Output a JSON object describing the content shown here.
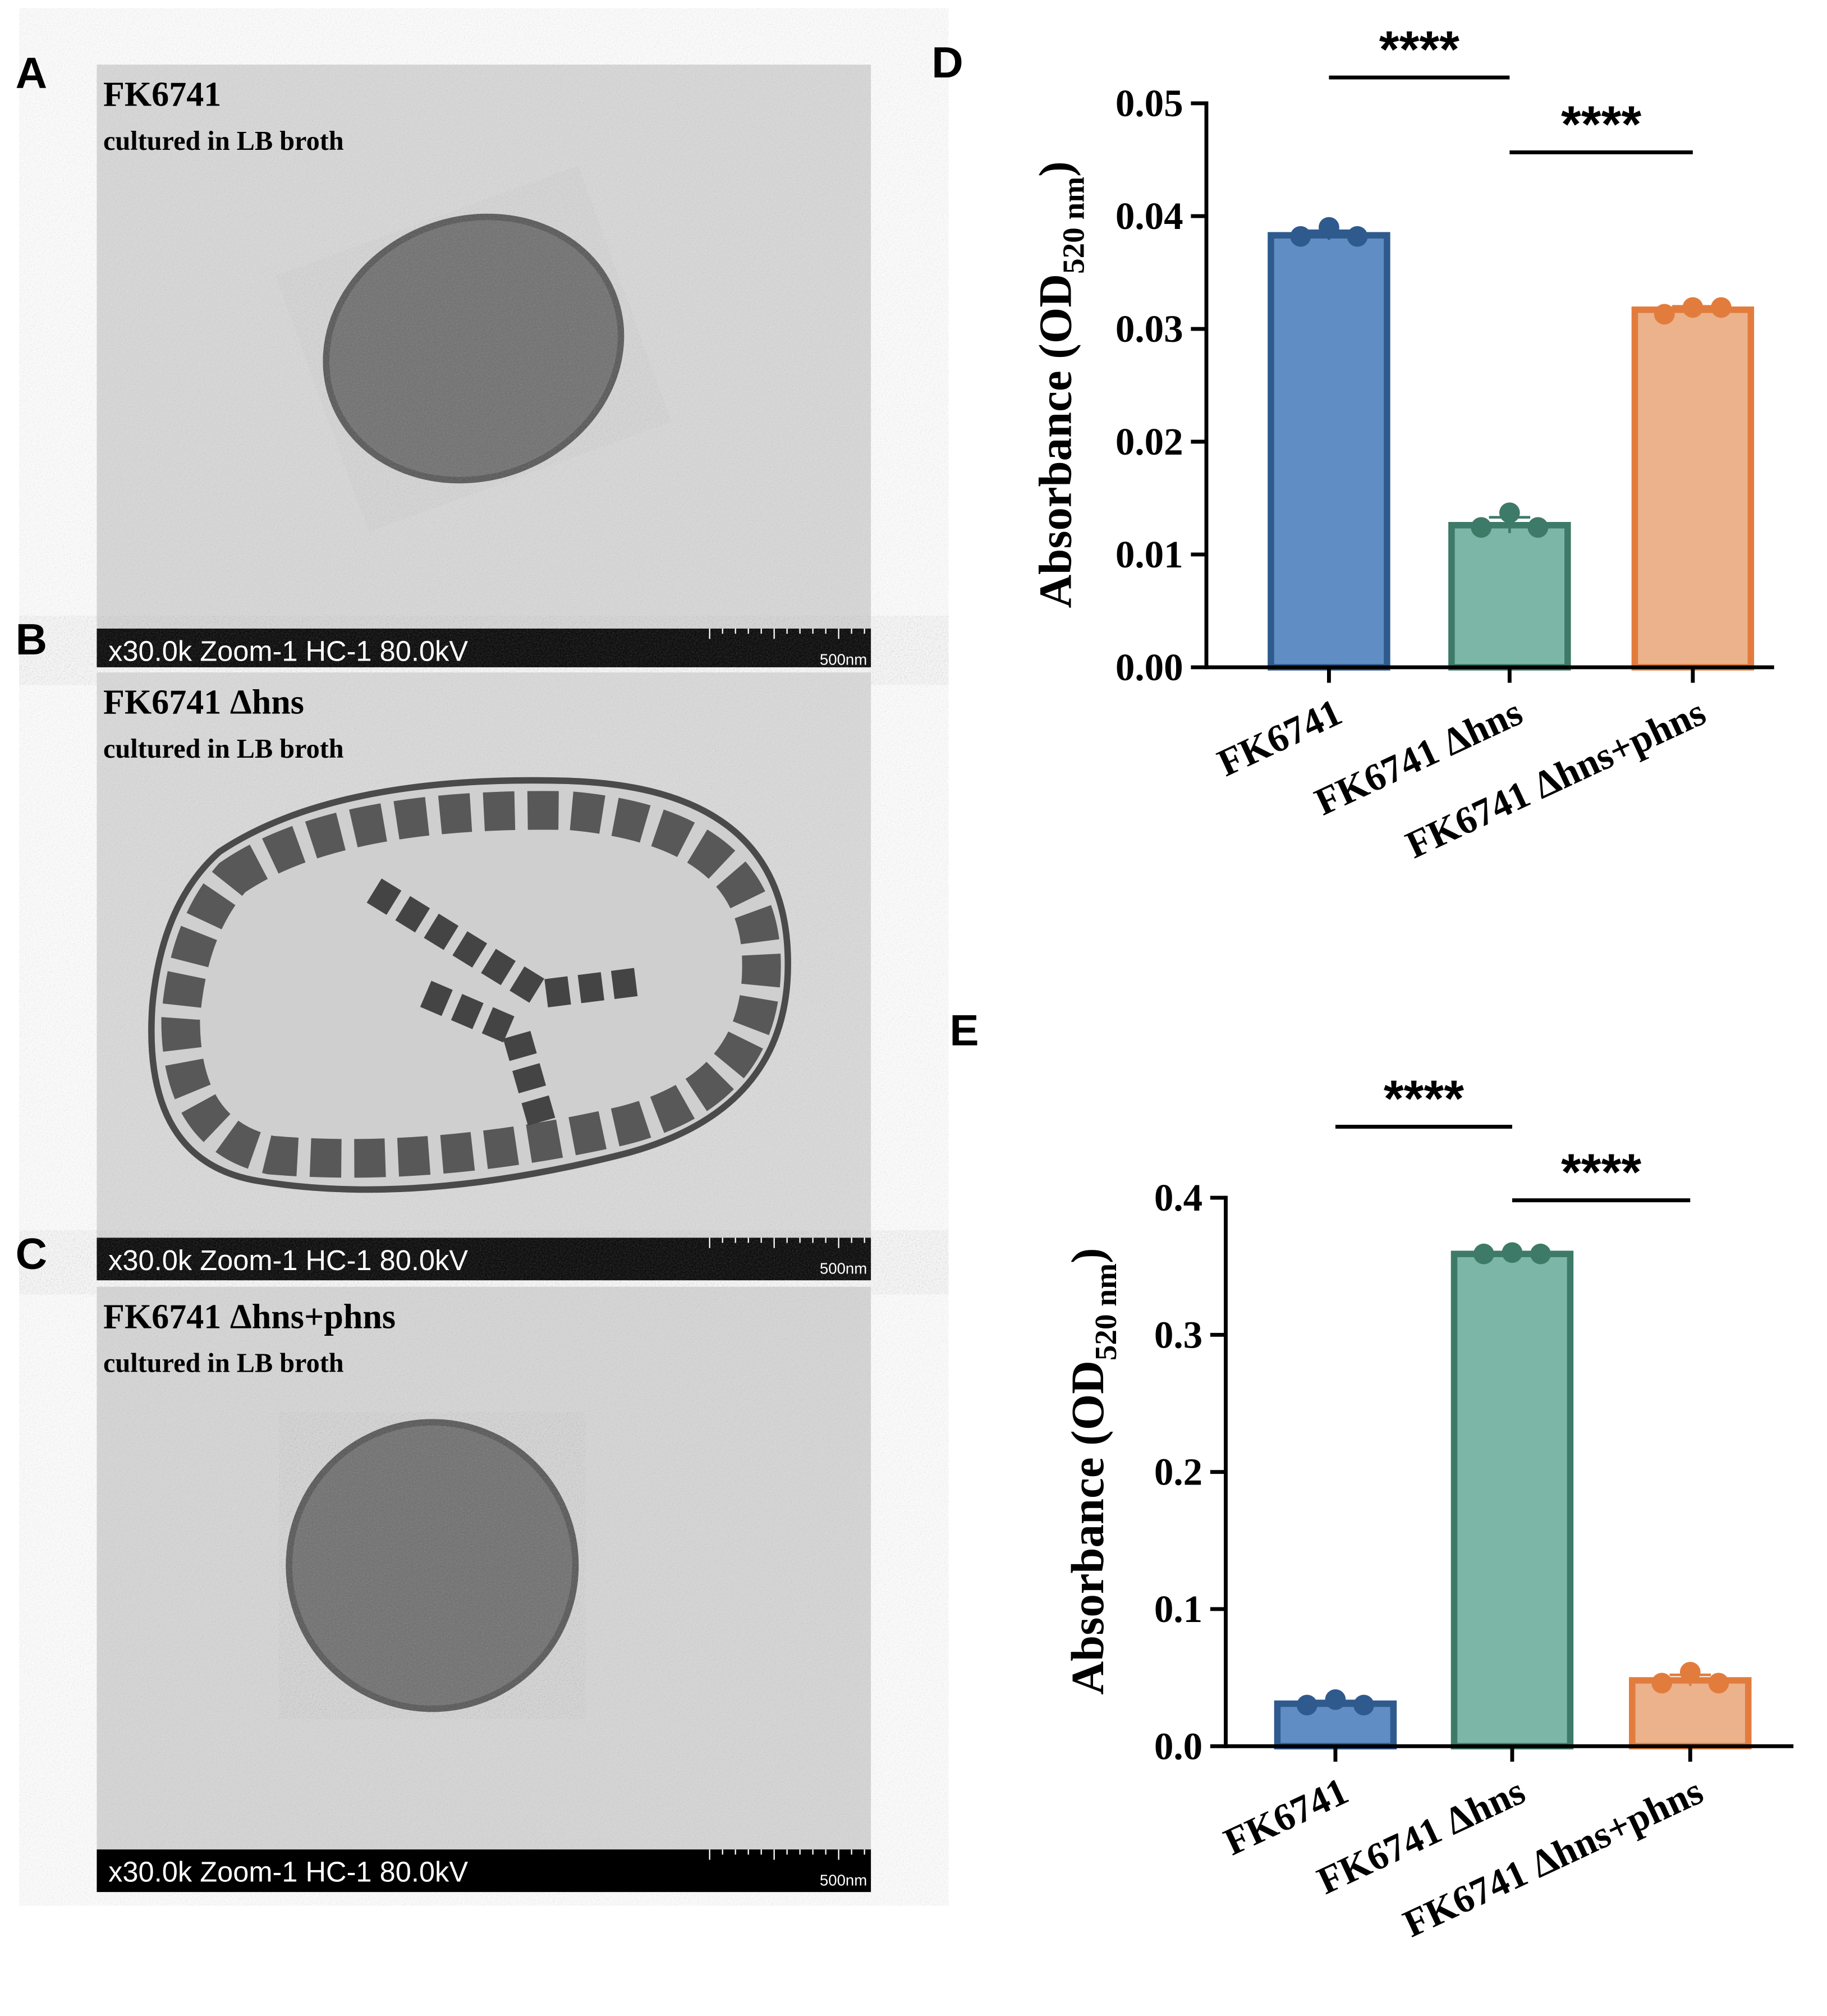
{
  "panels": [
    {
      "letter": "A",
      "title": "FK6741",
      "subtitle": "cultured in LB broth",
      "scale_text": "x30.0k Zoom-1 HC-1 80.0kV",
      "scale_bar": "500nm"
    },
    {
      "letter": "B",
      "title": "FK6741 Δhns",
      "subtitle": "cultured in LB broth",
      "scale_text": "x30.0k Zoom-1 HC-1 80.0kV",
      "scale_bar": "500nm"
    },
    {
      "letter": "C",
      "title": "FK6741 Δhns+phns",
      "subtitle": "cultured in LB broth",
      "scale_text": "x30.0k Zoom-1 HC-1 80.0kV",
      "scale_bar": "500nm"
    }
  ],
  "chart_data": [
    {
      "type": "bar",
      "panel_label": "D",
      "y_label": {
        "text": "Absorbance (OD",
        "subscript": "520 nm",
        "end": ")"
      },
      "categories": [
        "FK6741",
        "FK6741 Δhns",
        "FK6741 Δhns+phns"
      ],
      "values": [
        0.0383,
        0.0126,
        0.0317
      ],
      "errors": [
        0.0004,
        0.0007,
        0.0003
      ],
      "points": [
        [
          0.0382,
          0.039,
          0.0382
        ],
        [
          0.0124,
          0.0137,
          0.0124
        ],
        [
          0.0313,
          0.0319,
          0.0319
        ]
      ],
      "colors": [
        "#5f8dc4",
        "#7bb6a6",
        "#ebb28b"
      ],
      "edge_colors": [
        "#2f5a8e",
        "#3e7a68",
        "#e27c3d"
      ],
      "ylim": [
        0,
        0.05
      ],
      "yticks": [
        {
          "value": 0,
          "label": "0.00"
        },
        {
          "value": 0.01,
          "label": "0.01"
        },
        {
          "value": 0.02,
          "label": "0.02"
        },
        {
          "value": 0.03,
          "label": "0.03"
        },
        {
          "value": 0.04,
          "label": "0.04"
        },
        {
          "value": 0.05,
          "label": "0.05"
        }
      ],
      "annotations": [
        {
          "text": "****",
          "from": 0,
          "to": 1
        },
        {
          "text": "****",
          "from": 1,
          "to": 2
        }
      ]
    },
    {
      "type": "bar",
      "panel_label": "E",
      "y_label": {
        "text": "Absorbance (OD",
        "subscript": "520 nm",
        "end": ")"
      },
      "categories": [
        "FK6741",
        "FK6741 Δhns",
        "FK6741 Δhns+phns"
      ],
      "values": [
        0.031,
        0.359,
        0.048
      ],
      "errors": [
        0.002,
        0.001,
        0.004
      ],
      "points": [
        [
          0.03,
          0.034,
          0.03
        ],
        [
          0.359,
          0.36,
          0.359
        ],
        [
          0.046,
          0.054,
          0.046
        ]
      ],
      "colors": [
        "#5f8dc4",
        "#7bb6a6",
        "#ebb28b"
      ],
      "edge_colors": [
        "#2f5a8e",
        "#3e7a68",
        "#e27c3d"
      ],
      "ylim": [
        0,
        0.4
      ],
      "yticks": [
        {
          "value": 0,
          "label": "0.0"
        },
        0.1,
        0.2,
        0.3,
        0.4
      ],
      "annotations": [
        {
          "text": "****",
          "from": 0,
          "to": 1
        },
        {
          "text": "****",
          "from": 1,
          "to": 2
        }
      ]
    }
  ]
}
